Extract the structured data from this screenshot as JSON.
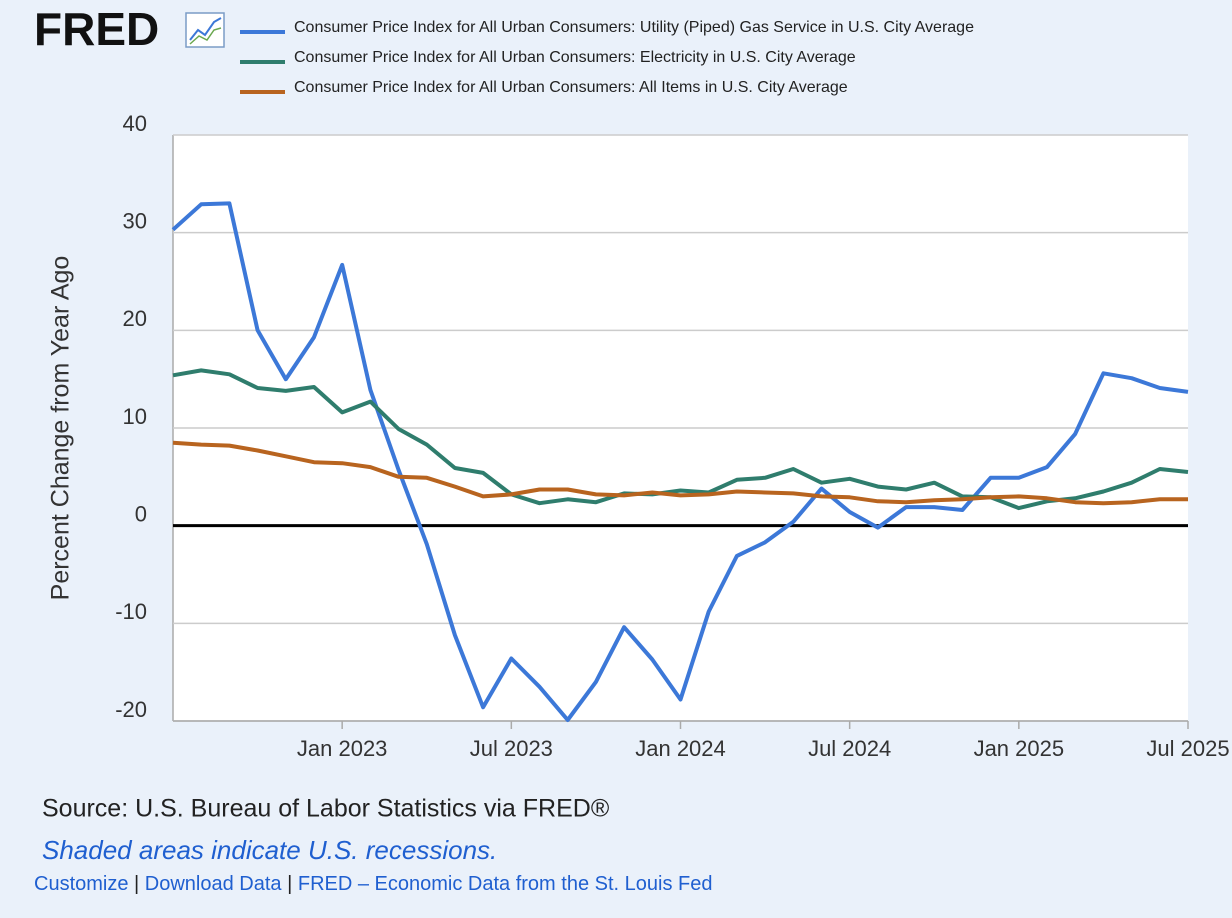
{
  "logo": "FRED",
  "chart_data": {
    "type": "line",
    "y_label": "Percent Change from Year Ago",
    "x": [
      "2022-07",
      "2022-08",
      "2022-09",
      "2022-10",
      "2022-11",
      "2022-12",
      "2023-01",
      "2023-02",
      "2023-03",
      "2023-04",
      "2023-05",
      "2023-06",
      "2023-07",
      "2023-08",
      "2023-09",
      "2023-10",
      "2023-11",
      "2023-12",
      "2024-01",
      "2024-02",
      "2024-03",
      "2024-04",
      "2024-05",
      "2024-06",
      "2024-07",
      "2024-08",
      "2024-09",
      "2024-10",
      "2024-11",
      "2024-12",
      "2025-01",
      "2025-02",
      "2025-03",
      "2025-04",
      "2025-05",
      "2025-06",
      "2025-07"
    ],
    "xlim": [
      "2022-07",
      "2025-07"
    ],
    "xticks": [
      {
        "value": "2023-01",
        "label": "Jan 2023"
      },
      {
        "value": "2023-07",
        "label": "Jul 2023"
      },
      {
        "value": "2024-01",
        "label": "Jan 2024"
      },
      {
        "value": "2024-07",
        "label": "Jul 2024"
      },
      {
        "value": "2025-01",
        "label": "Jan 2025"
      },
      {
        "value": "2025-07",
        "label": "Jul 2025"
      }
    ],
    "ylim": [
      -20,
      40
    ],
    "yticks": [
      -20,
      -10,
      0,
      10,
      20,
      30,
      40
    ],
    "grid": true,
    "series": [
      {
        "name": "Consumer Price Index for All Urban Consumers: Utility (Piped) Gas Service in U.S. City Average",
        "color": "#3c78d8",
        "values": [
          30.3,
          32.9,
          33.0,
          20.0,
          15.0,
          19.3,
          26.7,
          13.9,
          5.7,
          -1.9,
          -11.2,
          -18.6,
          -13.6,
          -16.5,
          -19.9,
          -16.0,
          -10.4,
          -13.7,
          -17.8,
          -8.8,
          -3.1,
          -1.7,
          0.4,
          3.8,
          1.4,
          -0.2,
          1.9,
          1.9,
          1.6,
          4.9,
          4.9,
          6.0,
          9.4,
          15.6,
          15.1,
          14.1,
          13.7
        ]
      },
      {
        "name": "Consumer Price Index for All Urban Consumers: Electricity in U.S. City Average",
        "color": "#2f7d6d",
        "values": [
          15.4,
          15.9,
          15.5,
          14.1,
          13.8,
          14.2,
          11.6,
          12.7,
          9.9,
          8.3,
          5.9,
          5.4,
          3.2,
          2.3,
          2.7,
          2.4,
          3.3,
          3.2,
          3.6,
          3.4,
          4.7,
          4.9,
          5.8,
          4.4,
          4.8,
          4.0,
          3.7,
          4.4,
          3.0,
          2.9,
          1.8,
          2.5,
          2.8,
          3.5,
          4.4,
          5.8,
          5.5
        ]
      },
      {
        "name": "Consumer Price Index for All Urban Consumers: All Items in U.S. City Average",
        "color": "#b8641f",
        "values": [
          8.5,
          8.3,
          8.2,
          7.7,
          7.1,
          6.5,
          6.4,
          6.0,
          5.0,
          4.9,
          4.0,
          3.0,
          3.2,
          3.7,
          3.7,
          3.2,
          3.1,
          3.4,
          3.1,
          3.2,
          3.5,
          3.4,
          3.3,
          3.0,
          2.9,
          2.5,
          2.4,
          2.6,
          2.7,
          2.9,
          3.0,
          2.8,
          2.4,
          2.3,
          2.4,
          2.7,
          2.7
        ]
      }
    ]
  },
  "footer": {
    "source": "Source: U.S. Bureau of Labor Statistics via FRED®",
    "note": "Shaded areas indicate U.S. recessions.",
    "separator": "|",
    "links": [
      "Customize",
      "Download Data",
      "FRED – Economic Data from the St. Louis Fed"
    ]
  }
}
